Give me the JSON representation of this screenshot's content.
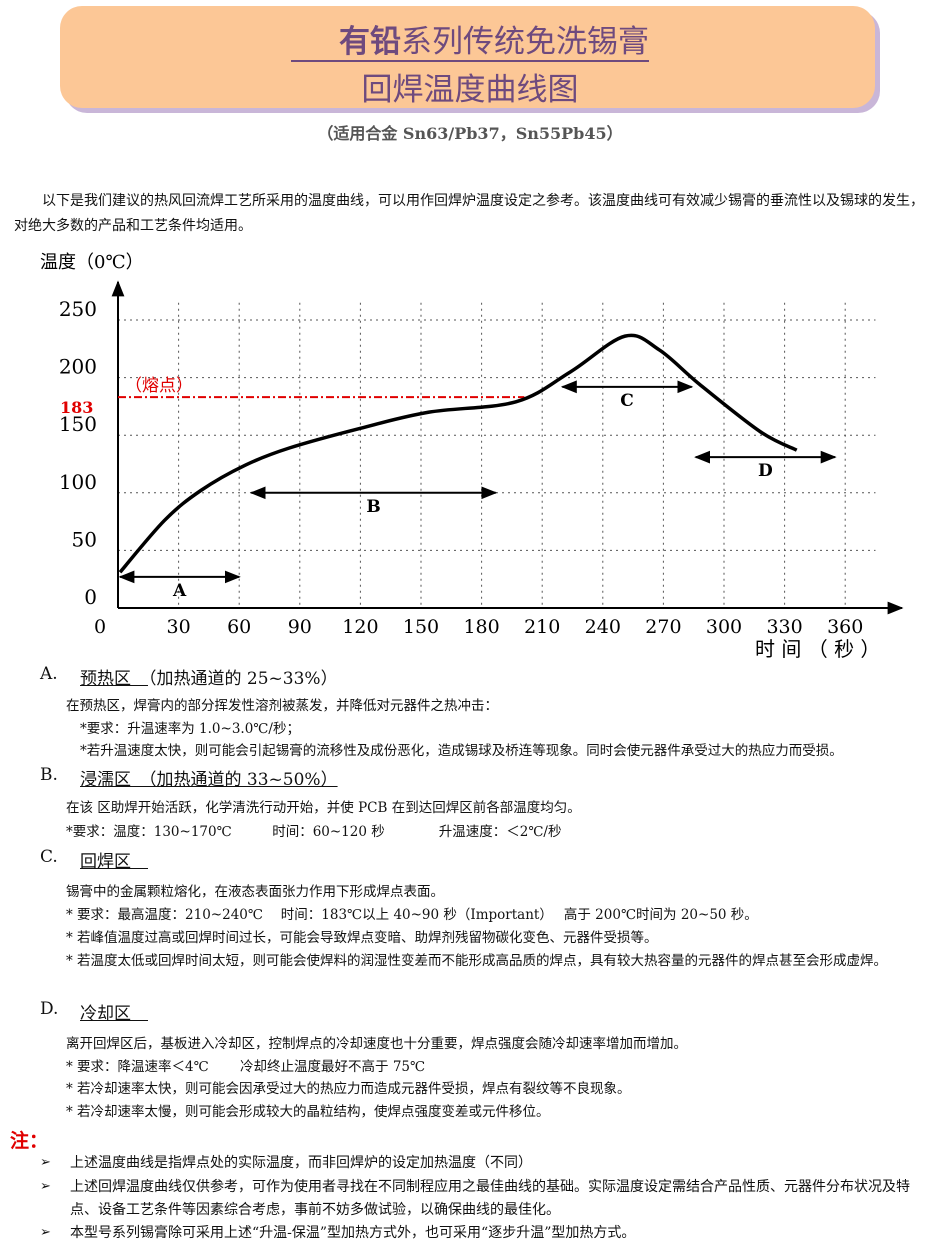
{
  "header": {
    "title_bold": "有铅",
    "title_rest": "系列传统免洗锡膏",
    "subtitle": "回焊温度曲线图",
    "alloy": "（适用合金 Sn63/Pb37，Sn55Pb45）"
  },
  "intro": "以下是我们建议的热风回流焊工艺所采用的温度曲线，可以用作回焊炉温度设定之参考。该温度曲线可有效减少锡膏的垂流性以及锡球的发生，对绝大多数的产品和工艺条件均适用。",
  "chart_data": {
    "type": "line",
    "y_label": "温度（0℃）",
    "x_label": "时 间 （ 秒 ）",
    "x": [
      1,
      23,
      41,
      63,
      85,
      120,
      154,
      197,
      224,
      251,
      268,
      288,
      318,
      336
    ],
    "values": [
      31,
      76,
      102,
      124,
      139,
      156,
      170,
      179,
      205,
      236,
      224,
      194,
      153,
      137
    ],
    "color": "#000000",
    "xlim": [
      0,
      380
    ],
    "xticks": [
      0,
      30,
      60,
      90,
      120,
      150,
      180,
      210,
      240,
      270,
      300,
      330,
      360
    ],
    "ylim": [
      0,
      265
    ],
    "yticks": [
      0,
      50,
      100,
      150,
      200,
      250
    ],
    "grid": true,
    "melting_point": {
      "value": 183,
      "note": "（熔点）",
      "color": "#e00000"
    },
    "zones": [
      {
        "label": "A",
        "start": 1,
        "end": 60,
        "temp": 27
      },
      {
        "label": "B",
        "start": 66,
        "end": 187,
        "temp": 100
      },
      {
        "label": "C",
        "start": 220,
        "end": 284,
        "temp": 192
      },
      {
        "label": "D",
        "start": 286,
        "end": 355,
        "temp": 131
      }
    ]
  },
  "sections": [
    {
      "letter": "A.",
      "title": "预热区",
      "note": "（加热通道的 25~33%）",
      "lines": [
        "在预热区，焊膏内的部分挥发性溶剂被蒸发，并降低对元器件之热冲击：",
        "*要求：升温速率为 1.0~3.0℃/秒；",
        "*若升温速度太快，则可能会引起锡膏的流移性及成份恶化，造成锡球及桥连等现象。同时会使元器件承受过大的热应力而受损。"
      ]
    },
    {
      "letter": "B.",
      "title": "浸濡区",
      "note": "（加热通道的 33~50%）",
      "lines": [
        "在该 区助焊开始活跃，化学清洗行动开始，并使 PCB 在到达回焊区前各部温度均匀。",
        "*要求：温度：130~170℃　　　时间：60~120 秒　　　　升温速度：＜2℃/秒"
      ]
    },
    {
      "letter": "C.",
      "title": "回焊区",
      "note": "",
      "lines": [
        "锡膏中的金属颗粒熔化，在液态表面张力作用下形成焊点表面。",
        "* 要求：最高温度：210~240℃　 时间：183℃以上 40~90 秒（Important）　 高于 200℃时间为 20~50 秒。",
        "* 若峰值温度过高或回焊时间过长，可能会导致焊点变暗、助焊剂残留物碳化变色、元器件受损等。",
        "* 若温度太低或回焊时间太短，则可能会使焊料的润湿性变差而不能形成高品质的焊点，具有较大热容量的元器件的焊点甚至会形成虚焊。"
      ]
    },
    {
      "letter": "D.",
      "title": "冷却区",
      "note": "",
      "lines": [
        "离开回焊区后，基板进入冷却区，控制焊点的冷却速度也十分重要，焊点强度会随冷却速率增加而增加。",
        "* 要求：降温速率＜4℃　　 冷却终止温度最好不高于 75℃",
        "* 若冷却速率太快，则可能会因承受过大的热应力而造成元器件受损，焊点有裂纹等不良现象。",
        "* 若冷却速率太慢，则可能会形成较大的晶粒结构，使焊点强度变差或元件移位。"
      ]
    }
  ],
  "notes": {
    "heading": "注：",
    "items": [
      "上述温度曲线是指焊点处的实际温度，而非回焊炉的设定加热温度（不同）",
      "上述回焊温度曲线仅供参考，可作为使用者寻找在不同制程应用之最佳曲线的基础。实际温度设定需结合产品性质、元器件分布状况及特点、设备工艺条件等因素综合考虑，事前不妨多做试验，以确保曲线的最佳化。",
      "本型号系列锡膏除可采用上述“升温-保温”型加热方式外，也可采用“逐步升温”型加热方式。"
    ]
  }
}
